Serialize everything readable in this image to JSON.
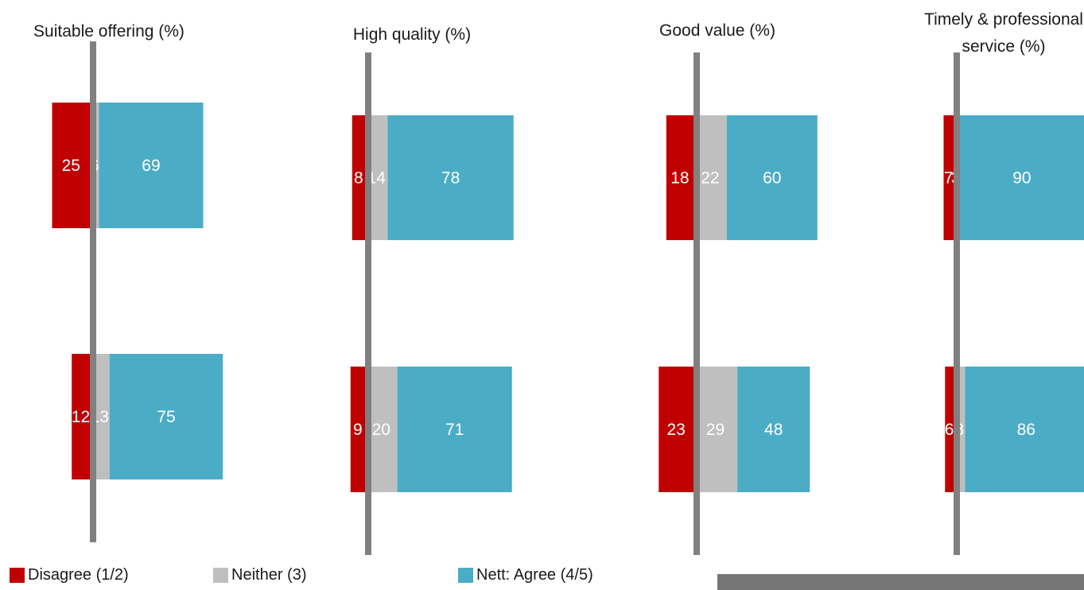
{
  "colors": {
    "disagree": "#C00000",
    "neither": "#BFBFBF",
    "agree": "#4BACC6",
    "axis": "#808080",
    "label": "#FFFFFF",
    "text": "#1A1A1A",
    "footnote_bg": "#767676"
  },
  "legend": {
    "disagree": "Disagree (1/2)",
    "neither": "Neither (3)",
    "agree": "Nett: Agree (4/5)"
  },
  "chart_data": [
    {
      "type": "bar",
      "orientation": "horizontal-stacked-diverging",
      "title_lines": [
        "Suitable offering (%)"
      ],
      "series": [
        {
          "name": "Disagree (1/2)",
          "values": [
            25,
            12
          ]
        },
        {
          "name": "Neither (3)",
          "values": [
            6,
            13
          ]
        },
        {
          "name": "Nett: Agree (4/5)",
          "values": [
            69,
            75
          ]
        }
      ]
    },
    {
      "type": "bar",
      "orientation": "horizontal-stacked-diverging",
      "title_lines": [
        "High quality (%)"
      ],
      "series": [
        {
          "name": "Disagree (1/2)",
          "values": [
            8,
            9
          ]
        },
        {
          "name": "Neither (3)",
          "values": [
            14,
            20
          ]
        },
        {
          "name": "Nett: Agree (4/5)",
          "values": [
            78,
            71
          ]
        }
      ]
    },
    {
      "type": "bar",
      "orientation": "horizontal-stacked-diverging",
      "title_lines": [
        "Good value (%)"
      ],
      "series": [
        {
          "name": "Disagree (1/2)",
          "values": [
            18,
            23
          ]
        },
        {
          "name": "Neither (3)",
          "values": [
            22,
            29
          ]
        },
        {
          "name": "Nett: Agree (4/5)",
          "values": [
            60,
            48
          ]
        }
      ]
    },
    {
      "type": "bar",
      "orientation": "horizontal-stacked-diverging",
      "title_lines": [
        "Timely & professional",
        "service (%)"
      ],
      "series": [
        {
          "name": "Disagree (1/2)",
          "values": [
            7,
            6
          ]
        },
        {
          "name": "Neither (3)",
          "values": [
            3,
            8
          ]
        },
        {
          "name": "Nett: Agree (4/5)",
          "values": [
            90,
            86
          ]
        }
      ]
    }
  ]
}
